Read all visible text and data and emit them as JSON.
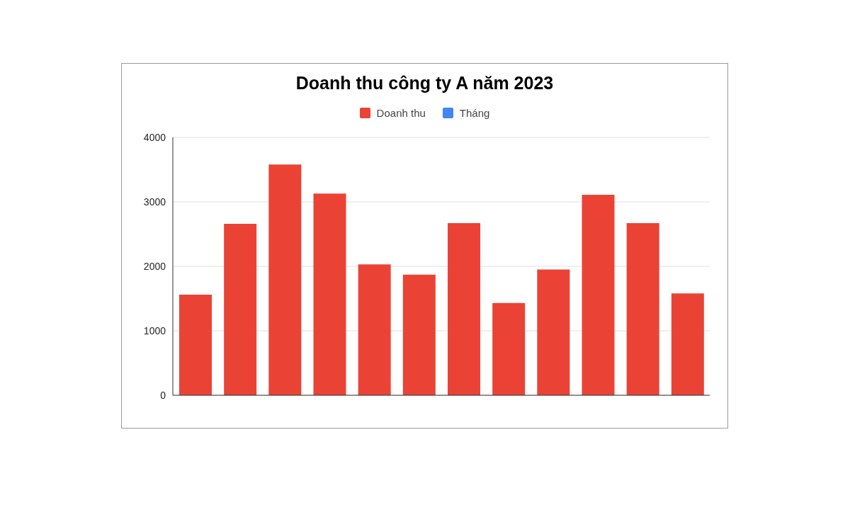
{
  "chart_data": {
    "type": "bar",
    "title": "Doanh thu công ty A năm 2023",
    "categories": [
      null,
      null,
      null,
      null,
      null,
      null,
      null,
      null,
      null,
      null,
      null,
      null
    ],
    "series": [
      {
        "name": "Doanh thu",
        "color": "#ea4335",
        "values": [
          1560,
          2660,
          3580,
          3130,
          2030,
          1870,
          2670,
          1430,
          1950,
          3110,
          2670,
          1580
        ]
      },
      {
        "name": "Tháng",
        "color": "#4285f4",
        "values": [
          null,
          null,
          null,
          null,
          null,
          null,
          null,
          null,
          null,
          null,
          null,
          null
        ]
      }
    ],
    "stacked": true,
    "ylim": [
      0,
      4000
    ],
    "yticks": [
      0,
      1000,
      2000,
      3000,
      4000
    ],
    "grid": "y",
    "legend": "top",
    "tick_labels": "y"
  }
}
